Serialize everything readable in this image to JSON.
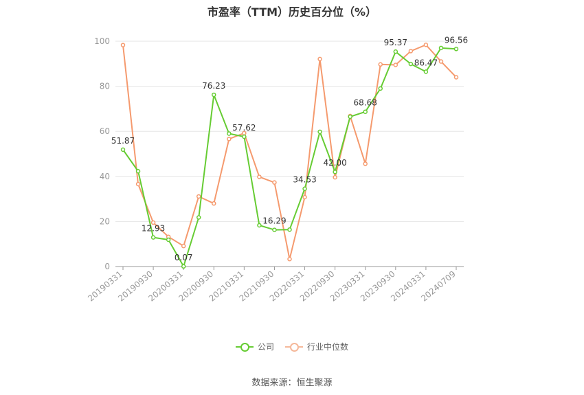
{
  "title": "市盈率（TTM）历史百分位（%）",
  "source": "数据来源：恒生聚源",
  "colors": {
    "company": "#66cc33",
    "industry": "#f59a6e",
    "grid": "#e6e6e6",
    "axis": "#999999"
  },
  "chart_data": {
    "type": "line",
    "ylim": [
      0,
      100
    ],
    "yticks": [
      0,
      20,
      40,
      60,
      80,
      100
    ],
    "x": [
      "20190331",
      "20190630",
      "20190930",
      "20191231",
      "20200331",
      "20200630",
      "20200930",
      "20201231",
      "20210331",
      "20210630",
      "20210930",
      "20211231",
      "20220331",
      "20220630",
      "20220930",
      "20221231",
      "20230331",
      "20230630",
      "20230930",
      "20231231",
      "20240331",
      "20240630",
      "20240709"
    ],
    "xtick_labels": [
      "20190331",
      "20190930",
      "20200331",
      "20200930",
      "20210331",
      "20210930",
      "20220331",
      "20220930",
      "20230331",
      "20230930",
      "20240331",
      "20240709"
    ],
    "series": [
      {
        "name": "公司",
        "color": "#66cc33",
        "values": [
          51.87,
          42.3,
          12.93,
          11.9,
          0.07,
          21.8,
          76.23,
          59.0,
          57.62,
          18.3,
          16.29,
          16.4,
          34.53,
          59.8,
          42.0,
          66.5,
          68.68,
          79.0,
          95.37,
          89.9,
          86.47,
          97.0,
          96.56
        ],
        "labels": {
          "0": "51.87",
          "2": "12.93",
          "4": "0.07",
          "6": "76.23",
          "8": "57.62",
          "10": "16.29",
          "12": "34.53",
          "14": "42.00",
          "16": "68.68",
          "18": "95.37",
          "20": "86.47",
          "22": "96.56"
        }
      },
      {
        "name": "行业中位数",
        "color": "#f59a6e",
        "values": [
          98.3,
          36.6,
          19.5,
          13.2,
          9.1,
          31.1,
          28.0,
          56.6,
          59.2,
          39.8,
          37.3,
          3.3,
          30.8,
          92.1,
          39.6,
          66.8,
          45.6,
          89.7,
          89.5,
          95.6,
          98.4,
          91.0,
          84.0
        ]
      }
    ]
  }
}
